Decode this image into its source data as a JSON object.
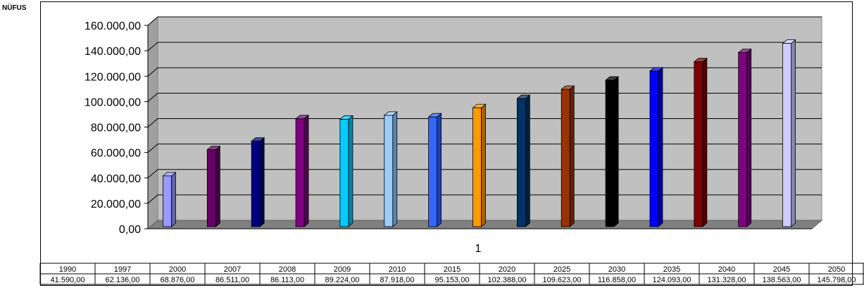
{
  "chart_data": {
    "type": "bar",
    "ylabel": "NÜFUS",
    "xlabel": "1",
    "categories": [
      "1990",
      "1997",
      "2000",
      "2007",
      "2008",
      "2009",
      "2010",
      "2015",
      "2020",
      "2025",
      "2030",
      "2035",
      "2040",
      "2045",
      "2050"
    ],
    "values": [
      41590,
      62136,
      68876,
      86511,
      86113,
      89224,
      87918,
      95153,
      102388,
      109623,
      116858,
      124093,
      131328,
      138563,
      145798
    ],
    "value_labels": [
      "41.590,00",
      "62.136,00",
      "68.876,00",
      "86.511,00",
      "86.113,00",
      "89.224,00",
      "87.918,00",
      "95.153,00",
      "102.388,00",
      "109.623,00",
      "116.858,00",
      "124.093,00",
      "131.328,00",
      "138.563,00",
      "145.798,00"
    ],
    "yticks": [
      0,
      20000,
      40000,
      60000,
      80000,
      100000,
      120000,
      140000,
      160000
    ],
    "ytick_labels": [
      "0,00",
      "20.000,00",
      "40.000,00",
      "60.000,00",
      "80.000,00",
      "100.000,00",
      "120.000,00",
      "140.000,00",
      "160.000,00"
    ],
    "ylim": [
      0,
      160000
    ],
    "grid": true,
    "colors": [
      "#9999ff",
      "#660066",
      "#000080",
      "#800080",
      "#00ccff",
      "#99ccff",
      "#3366ff",
      "#ff9900",
      "#003366",
      "#993300",
      "#000000",
      "#0000ff",
      "#800000",
      "#800080",
      "#ccccff"
    ]
  }
}
